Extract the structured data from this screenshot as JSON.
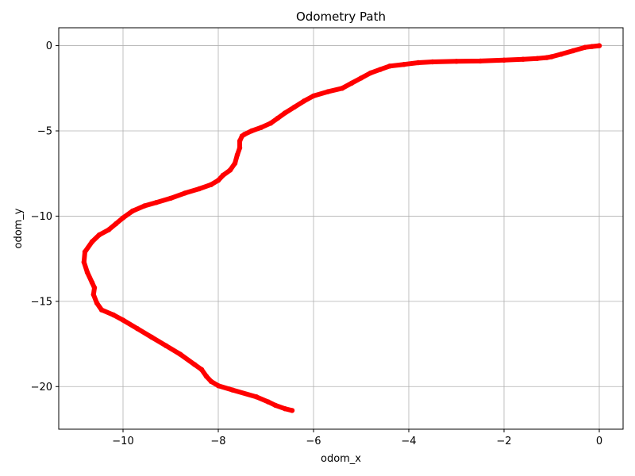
{
  "chart_data": {
    "type": "line",
    "title": "Odometry Path",
    "xlabel": "odom_x",
    "ylabel": "odom_y",
    "xlim": [
      -11.35,
      0.5
    ],
    "ylim": [
      -22.5,
      1.05
    ],
    "xticks": [
      -10,
      -8,
      -6,
      -4,
      -2,
      0
    ],
    "yticks": [
      0,
      -5,
      -10,
      -15,
      -20
    ],
    "grid": true,
    "color": "#ff0000",
    "series": [
      {
        "x": [
          0.0,
          -0.15,
          -0.3,
          -0.55,
          -0.8,
          -1.0,
          -1.1,
          -1.3,
          -1.6,
          -2.0,
          -2.5,
          -3.0,
          -3.5,
          -3.8,
          -4.1,
          -4.4,
          -4.6,
          -4.8,
          -5.0,
          -5.2,
          -5.4,
          -5.7,
          -6.0,
          -6.2,
          -6.4,
          -6.6,
          -6.75,
          -6.9,
          -7.1,
          -7.3,
          -7.45,
          -7.5,
          -7.55,
          -7.55,
          -7.6,
          -7.65,
          -7.75,
          -7.9,
          -8.0,
          -8.15,
          -8.4,
          -8.7,
          -9.0,
          -9.3,
          -9.55,
          -9.8,
          -10.0,
          -10.15,
          -10.3,
          -10.5,
          -10.65,
          -10.8,
          -10.82,
          -10.75,
          -10.65,
          -10.6,
          -10.62,
          -10.55,
          -10.45,
          -10.2,
          -10.0,
          -9.7,
          -9.4,
          -9.1,
          -8.8,
          -8.5,
          -8.35,
          -8.25,
          -8.15,
          -8.0,
          -7.7,
          -7.2,
          -6.95,
          -6.8,
          -6.6,
          -6.45
        ],
        "y": [
          0.0,
          -0.05,
          -0.1,
          -0.3,
          -0.5,
          -0.65,
          -0.7,
          -0.75,
          -0.8,
          -0.85,
          -0.9,
          -0.92,
          -0.95,
          -1.0,
          -1.1,
          -1.2,
          -1.4,
          -1.6,
          -1.9,
          -2.2,
          -2.5,
          -2.7,
          -2.95,
          -3.25,
          -3.6,
          -3.95,
          -4.25,
          -4.55,
          -4.8,
          -5.0,
          -5.2,
          -5.3,
          -5.6,
          -6.0,
          -6.4,
          -6.9,
          -7.3,
          -7.6,
          -7.9,
          -8.15,
          -8.4,
          -8.65,
          -8.95,
          -9.2,
          -9.4,
          -9.7,
          -10.1,
          -10.45,
          -10.8,
          -11.1,
          -11.5,
          -12.1,
          -12.7,
          -13.3,
          -13.9,
          -14.2,
          -14.6,
          -15.1,
          -15.5,
          -15.8,
          -16.1,
          -16.6,
          -17.1,
          -17.6,
          -18.1,
          -18.7,
          -19.0,
          -19.4,
          -19.7,
          -19.95,
          -20.2,
          -20.6,
          -20.9,
          -21.1,
          -21.3,
          -21.4
        ]
      }
    ]
  }
}
